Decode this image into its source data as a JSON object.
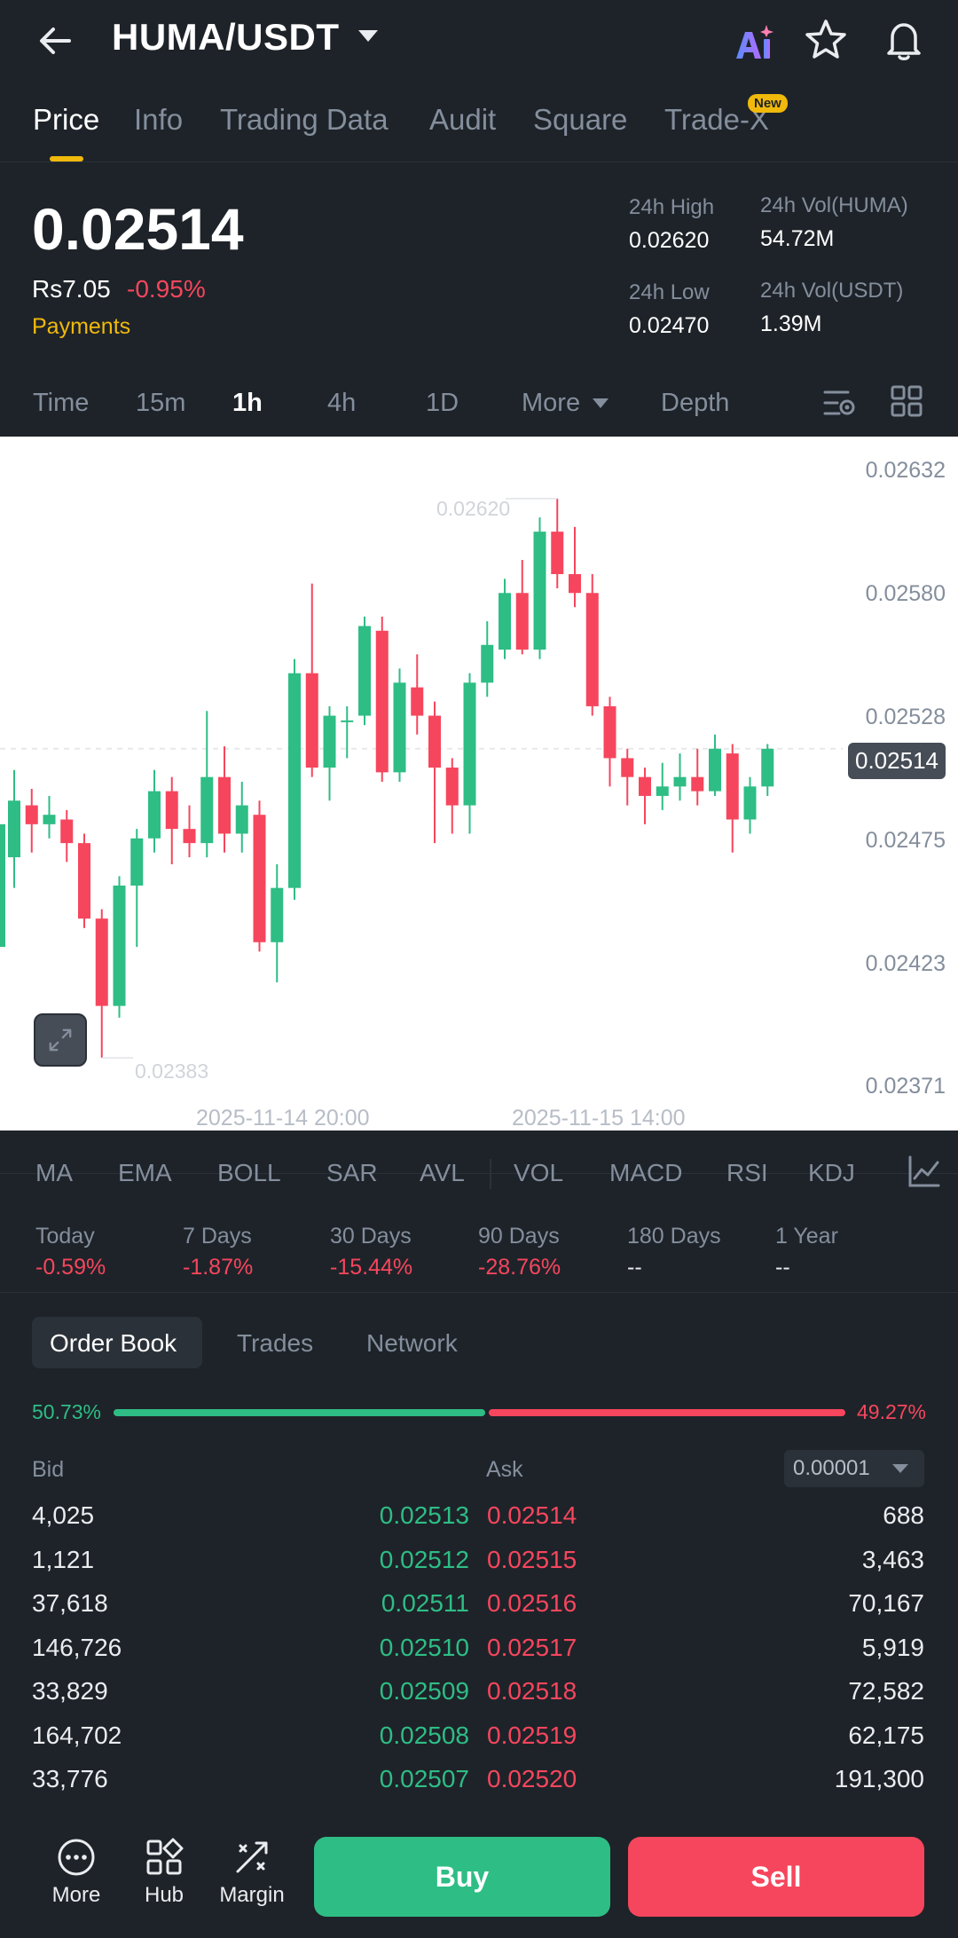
{
  "header": {
    "pair": "HUMA/USDT",
    "icons": [
      "back-arrow-icon",
      "ai-icon",
      "star-icon",
      "bell-icon"
    ]
  },
  "tabs": [
    {
      "label": "Price",
      "active": true
    },
    {
      "label": "Info"
    },
    {
      "label": "Trading Data"
    },
    {
      "label": "Audit"
    },
    {
      "label": "Square"
    },
    {
      "label": "Trade-X",
      "badge": "New"
    }
  ],
  "price": {
    "last": "0.02514",
    "fiat": "Rs7.05",
    "change": "-0.95%",
    "payments": "Payments",
    "stats": {
      "high_label": "24h High",
      "high": "0.02620",
      "low_label": "24h Low",
      "low": "0.02470",
      "vol_base_label": "24h Vol(HUMA)",
      "vol_base": "54.72M",
      "vol_quote_label": "24h Vol(USDT)",
      "vol_quote": "1.39M"
    }
  },
  "intervals": [
    "Time",
    "15m",
    "1h",
    "4h",
    "1D",
    "More",
    "Depth"
  ],
  "active_interval": "1h",
  "chart": {
    "y_ticks": [
      "0.02632",
      "0.02580",
      "0.02528",
      "0.02475",
      "0.02423",
      "0.02371"
    ],
    "x_ticks": [
      "2025-11-14 20:00",
      "2025-11-15 14:00"
    ],
    "high_label": "0.02620",
    "low_label": "0.02383",
    "current_tag": "0.02514"
  },
  "chart_data": {
    "type": "candlestick",
    "ylim": [
      0.02371,
      0.02632
    ],
    "up_color": "#2EBD85",
    "down_color": "#F6465D",
    "candles": [
      {
        "o": 0.02468,
        "c": 0.02492,
        "h": 0.02505,
        "l": 0.02455
      },
      {
        "o": 0.0249,
        "c": 0.02482,
        "h": 0.02497,
        "l": 0.0247
      },
      {
        "o": 0.02482,
        "c": 0.02486,
        "h": 0.02494,
        "l": 0.02476
      },
      {
        "o": 0.02484,
        "c": 0.02474,
        "h": 0.02488,
        "l": 0.02466
      },
      {
        "o": 0.02474,
        "c": 0.02442,
        "h": 0.02478,
        "l": 0.02438
      },
      {
        "o": 0.02442,
        "c": 0.02405,
        "h": 0.02446,
        "l": 0.02383
      },
      {
        "o": 0.02405,
        "c": 0.02456,
        "h": 0.0246,
        "l": 0.024
      },
      {
        "o": 0.02456,
        "c": 0.02476,
        "h": 0.0248,
        "l": 0.0243
      },
      {
        "o": 0.02476,
        "c": 0.02496,
        "h": 0.02505,
        "l": 0.0247
      },
      {
        "o": 0.02496,
        "c": 0.0248,
        "h": 0.02502,
        "l": 0.02465
      },
      {
        "o": 0.0248,
        "c": 0.02474,
        "h": 0.0249,
        "l": 0.02468
      },
      {
        "o": 0.02474,
        "c": 0.02502,
        "h": 0.0253,
        "l": 0.02468
      },
      {
        "o": 0.02502,
        "c": 0.02478,
        "h": 0.02515,
        "l": 0.0247
      },
      {
        "o": 0.02478,
        "c": 0.0249,
        "h": 0.025,
        "l": 0.0247
      },
      {
        "o": 0.02486,
        "c": 0.02432,
        "h": 0.02492,
        "l": 0.02428
      },
      {
        "o": 0.02432,
        "c": 0.02455,
        "h": 0.02465,
        "l": 0.02415
      },
      {
        "o": 0.02455,
        "c": 0.02546,
        "h": 0.02552,
        "l": 0.0245
      },
      {
        "o": 0.02546,
        "c": 0.02506,
        "h": 0.02584,
        "l": 0.02502
      },
      {
        "o": 0.02506,
        "c": 0.02528,
        "h": 0.02532,
        "l": 0.02492
      },
      {
        "o": 0.02526,
        "c": 0.02526,
        "h": 0.02532,
        "l": 0.0251
      },
      {
        "o": 0.02528,
        "c": 0.02566,
        "h": 0.0257,
        "l": 0.02524
      },
      {
        "o": 0.02564,
        "c": 0.02504,
        "h": 0.0257,
        "l": 0.025
      },
      {
        "o": 0.02504,
        "c": 0.02542,
        "h": 0.02548,
        "l": 0.025
      },
      {
        "o": 0.0254,
        "c": 0.02528,
        "h": 0.02554,
        "l": 0.0252
      },
      {
        "o": 0.02528,
        "c": 0.02506,
        "h": 0.02534,
        "l": 0.02474
      },
      {
        "o": 0.02506,
        "c": 0.0249,
        "h": 0.0251,
        "l": 0.02478
      },
      {
        "o": 0.0249,
        "c": 0.02542,
        "h": 0.02546,
        "l": 0.02478
      },
      {
        "o": 0.02542,
        "c": 0.02558,
        "h": 0.02568,
        "l": 0.02536
      },
      {
        "o": 0.02556,
        "c": 0.0258,
        "h": 0.02586,
        "l": 0.02552
      },
      {
        "o": 0.0258,
        "c": 0.02556,
        "h": 0.02594,
        "l": 0.02554
      },
      {
        "o": 0.02556,
        "c": 0.02606,
        "h": 0.02612,
        "l": 0.02552
      },
      {
        "o": 0.02606,
        "c": 0.02588,
        "h": 0.0262,
        "l": 0.02582
      },
      {
        "o": 0.02588,
        "c": 0.0258,
        "h": 0.02608,
        "l": 0.02574
      },
      {
        "o": 0.0258,
        "c": 0.02532,
        "h": 0.02588,
        "l": 0.02528
      },
      {
        "o": 0.02532,
        "c": 0.0251,
        "h": 0.02536,
        "l": 0.02498
      },
      {
        "o": 0.0251,
        "c": 0.02502,
        "h": 0.02514,
        "l": 0.0249
      },
      {
        "o": 0.02502,
        "c": 0.02494,
        "h": 0.02506,
        "l": 0.02482
      },
      {
        "o": 0.02494,
        "c": 0.02498,
        "h": 0.02508,
        "l": 0.02488
      },
      {
        "o": 0.02498,
        "c": 0.02502,
        "h": 0.02512,
        "l": 0.02492
      },
      {
        "o": 0.02502,
        "c": 0.02496,
        "h": 0.02514,
        "l": 0.0249
      },
      {
        "o": 0.02496,
        "c": 0.02514,
        "h": 0.0252,
        "l": 0.02494
      },
      {
        "o": 0.02512,
        "c": 0.02484,
        "h": 0.02516,
        "l": 0.0247
      },
      {
        "o": 0.02484,
        "c": 0.02498,
        "h": 0.02502,
        "l": 0.02478
      },
      {
        "o": 0.02498,
        "c": 0.02514,
        "h": 0.02516,
        "l": 0.02494
      }
    ]
  },
  "indicators": [
    "MA",
    "EMA",
    "BOLL",
    "SAR",
    "AVL",
    "VOL",
    "MACD",
    "RSI",
    "KDJ"
  ],
  "performance": [
    {
      "label": "Today",
      "value": "-0.59%"
    },
    {
      "label": "7 Days",
      "value": "-1.87%"
    },
    {
      "label": "30 Days",
      "value": "-15.44%"
    },
    {
      "label": "90 Days",
      "value": "-28.76%"
    },
    {
      "label": "180 Days",
      "value": "--"
    },
    {
      "label": "1 Year",
      "value": "--"
    }
  ],
  "orderbook": {
    "tabs": [
      "Order Book",
      "Trades",
      "Network"
    ],
    "bid_pct": "50.73%",
    "bid_ratio": 0.5073,
    "ask_pct": "49.27%",
    "bid_label": "Bid",
    "ask_label": "Ask",
    "precision": "0.00001",
    "rows": [
      {
        "bid_qty": "4,025",
        "bid_price": "0.02513",
        "ask_price": "0.02514",
        "ask_qty": "688"
      },
      {
        "bid_qty": "1,121",
        "bid_price": "0.02512",
        "ask_price": "0.02515",
        "ask_qty": "3,463"
      },
      {
        "bid_qty": "37,618",
        "bid_price": "0.02511",
        "ask_price": "0.02516",
        "ask_qty": "70,167"
      },
      {
        "bid_qty": "146,726",
        "bid_price": "0.02510",
        "ask_price": "0.02517",
        "ask_qty": "5,919"
      },
      {
        "bid_qty": "33,829",
        "bid_price": "0.02509",
        "ask_price": "0.02518",
        "ask_qty": "72,582"
      },
      {
        "bid_qty": "164,702",
        "bid_price": "0.02508",
        "ask_price": "0.02519",
        "ask_qty": "62,175"
      },
      {
        "bid_qty": "33,776",
        "bid_price": "0.02507",
        "ask_price": "0.02520",
        "ask_qty": "191,300"
      }
    ]
  },
  "bottom": {
    "more": "More",
    "hub": "Hub",
    "margin": "Margin",
    "buy": "Buy",
    "sell": "Sell"
  }
}
